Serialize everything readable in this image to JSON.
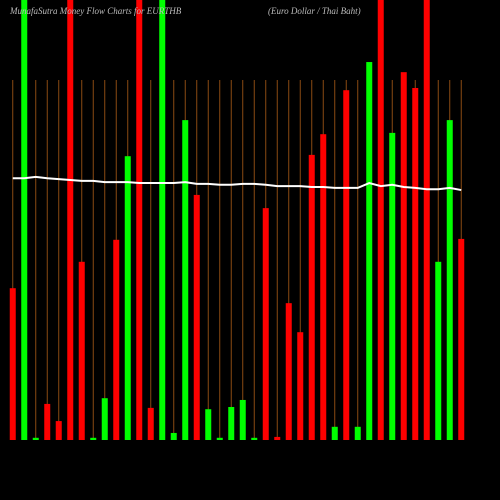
{
  "chart_data": {
    "type": "bar",
    "title": "MunafaSutra  Money Flow  Charts for EURTHB",
    "subtitle": "(Euro  Dollar / Thai  Baht)",
    "categories": [
      null,
      null,
      null,
      null,
      null,
      null,
      null,
      null,
      null,
      null,
      null,
      null,
      null,
      null,
      null,
      null,
      null,
      null,
      null,
      null,
      null,
      null,
      null,
      null,
      null,
      null,
      null,
      null,
      null,
      null,
      null,
      null,
      null,
      null,
      null,
      null,
      null,
      null,
      null,
      null
    ],
    "values": [
      34.5,
      100,
      0.5,
      8.2,
      4.3,
      100,
      40.5,
      0.5,
      9.5,
      45.5,
      64.5,
      100,
      7.3,
      100,
      1.6,
      72.7,
      55.7,
      7,
      0.5,
      7.5,
      9.1,
      0.5,
      52.7,
      0.7,
      31.1,
      24.5,
      64.8,
      69.5,
      3,
      79.5,
      3,
      85.9,
      100,
      69.8,
      83.6,
      80,
      100,
      40.5,
      72.7,
      45.7
    ],
    "colors": [
      "#ff0000",
      "#00ff00",
      "#00ff00",
      "#ff0000",
      "#ff0000",
      "#ff0000",
      "#ff0000",
      "#00ff00",
      "#00ff00",
      "#ff0000",
      "#00ff00",
      "#ff0000",
      "#ff0000",
      "#00ff00",
      "#00ff00",
      "#00ff00",
      "#ff0000",
      "#00ff00",
      "#00ff00",
      "#00ff00",
      "#00ff00",
      "#00ff00",
      "#ff0000",
      "#ff0000",
      "#ff0000",
      "#ff0000",
      "#ff0000",
      "#ff0000",
      "#00ff00",
      "#ff0000",
      "#00ff00",
      "#00ff00",
      "#ff0000",
      "#00ff00",
      "#ff0000",
      "#ff0000",
      "#ff0000",
      "#00ff00",
      "#00ff00",
      "#ff0000"
    ],
    "line": {
      "color": "#ffffff",
      "values": [
        59.5,
        59.5,
        59.8,
        59.5,
        59.3,
        59.1,
        58.9,
        58.9,
        58.6,
        58.6,
        58.6,
        58.4,
        58.4,
        58.4,
        58.4,
        58.6,
        58.2,
        58.2,
        58,
        58,
        58.2,
        58.2,
        58,
        57.7,
        57.7,
        57.7,
        57.5,
        57.5,
        57.3,
        57.3,
        57.3,
        58.4,
        57.7,
        58,
        57.5,
        57.3,
        57,
        57,
        57.3,
        56.8
      ]
    },
    "ylim": [
      0,
      100
    ],
    "grid": true
  }
}
